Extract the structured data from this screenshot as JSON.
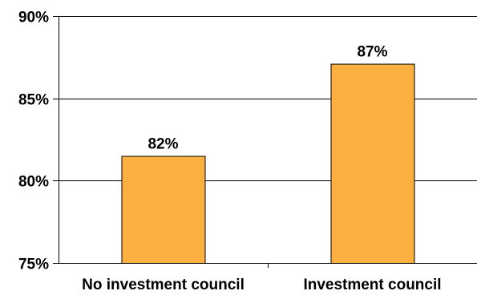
{
  "chart_data": {
    "type": "bar",
    "categories": [
      "No investment council",
      "Investment council"
    ],
    "values": [
      81.5,
      87.1
    ],
    "data_labels": [
      "82%",
      "87%"
    ],
    "title": "",
    "xlabel": "",
    "ylabel": "",
    "ylim": [
      75,
      90
    ],
    "yticks": [
      75,
      80,
      85,
      90
    ],
    "ytick_labels": [
      "75%",
      "80%",
      "85%",
      "90%"
    ],
    "grid": true,
    "legend": "none",
    "bar_color": "#fbb040",
    "bar_edge_color": "#000000"
  }
}
